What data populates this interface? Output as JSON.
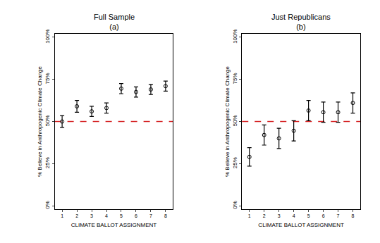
{
  "chart_data": [
    {
      "type": "scatter",
      "title": "Full Sample",
      "subtitle": "(a)",
      "x_label": "CLIMATE BALLOT ASSIGNMENT",
      "y_label": "% Believe in Anthropogenic Climate Change",
      "x": [
        1,
        2,
        3,
        4,
        5,
        6,
        7,
        8
      ],
      "series": [
        {
          "name": "Full Sample",
          "color": "#000000",
          "marker": "circle-open",
          "values": [
            50,
            59,
            56,
            58,
            69.5,
            67.5,
            69,
            71
          ],
          "errors": [
            3.5,
            3.5,
            3,
            3,
            3,
            3,
            3,
            3
          ]
        }
      ],
      "xlim": [
        0.5,
        8.5
      ],
      "xticks": [
        1,
        2,
        3,
        4,
        5,
        6,
        7,
        8
      ],
      "ylim": [
        -2,
        102
      ],
      "yticks": [
        {
          "value": 0,
          "label": "0%"
        },
        {
          "value": 25,
          "label": "25%"
        },
        {
          "value": 50,
          "label": "50%"
        },
        {
          "value": 75,
          "label": "75%"
        },
        {
          "value": 100,
          "label": "100%"
        }
      ],
      "hline": {
        "value": 50,
        "color": "#d62728",
        "line_style": "dash"
      },
      "grid": false
    },
    {
      "type": "scatter",
      "title": "Just Republicans",
      "subtitle": "(b)",
      "x_label": "CLIMATE BALLOT ASSIGNMENT",
      "y_label": "% Believe in Anthropogenic Climate Change",
      "x": [
        1,
        2,
        3,
        4,
        5,
        6,
        7,
        8
      ],
      "series": [
        {
          "name": "Just Republicans",
          "color": "#000000",
          "marker": "circle-open",
          "values": [
            29,
            42,
            40,
            44.5,
            56.5,
            55.5,
            55.5,
            61
          ],
          "errors": [
            5.5,
            6,
            6,
            6,
            6,
            6,
            6,
            6
          ]
        }
      ],
      "xlim": [
        0.5,
        8.5
      ],
      "xticks": [
        1,
        2,
        3,
        4,
        5,
        6,
        7,
        8
      ],
      "ylim": [
        -2,
        102
      ],
      "yticks": [
        {
          "value": 0,
          "label": "0%"
        },
        {
          "value": 25,
          "label": "25%"
        },
        {
          "value": 50,
          "label": "50%"
        },
        {
          "value": 75,
          "label": "75%"
        },
        {
          "value": 100,
          "label": "100%"
        }
      ],
      "hline": {
        "value": 50,
        "color": "#d62728",
        "line_style": "dash"
      },
      "grid": false
    }
  ]
}
